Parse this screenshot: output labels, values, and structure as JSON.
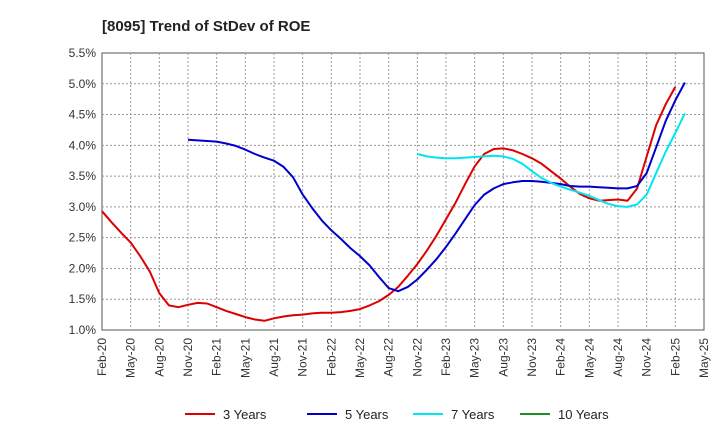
{
  "chart_data": {
    "type": "line",
    "title": "[8095]  Trend of StDev of ROE",
    "xlabel": "",
    "ylabel": "",
    "x_ticks": [
      "Feb-20",
      "May-20",
      "Aug-20",
      "Nov-20",
      "Feb-21",
      "May-21",
      "Aug-21",
      "Nov-21",
      "Feb-22",
      "May-22",
      "Aug-22",
      "Nov-22",
      "Feb-23",
      "May-23",
      "Aug-23",
      "Nov-23",
      "Feb-24",
      "May-24",
      "Aug-24",
      "Nov-24",
      "Feb-25",
      "May-25"
    ],
    "y_ticks": [
      "1.0%",
      "1.5%",
      "2.0%",
      "2.5%",
      "3.0%",
      "3.5%",
      "4.0%",
      "4.5%",
      "5.0%",
      "5.5%"
    ],
    "ylim": [
      1.0,
      5.5
    ],
    "xlim": [
      "2020-02",
      "2025-05"
    ],
    "grid": true,
    "legend_position": "bottom",
    "series": [
      {
        "name": "3 Years",
        "color": "#dd0000",
        "points": [
          [
            "2020-02",
            2.93
          ],
          [
            "2020-03",
            2.75
          ],
          [
            "2020-04",
            2.58
          ],
          [
            "2020-05",
            2.42
          ],
          [
            "2020-06",
            2.2
          ],
          [
            "2020-07",
            1.95
          ],
          [
            "2020-08",
            1.6
          ],
          [
            "2020-09",
            1.4
          ],
          [
            "2020-10",
            1.37
          ],
          [
            "2020-11",
            1.41
          ],
          [
            "2020-12",
            1.44
          ],
          [
            "2021-01",
            1.43
          ],
          [
            "2021-02",
            1.37
          ],
          [
            "2021-03",
            1.31
          ],
          [
            "2021-04",
            1.26
          ],
          [
            "2021-05",
            1.21
          ],
          [
            "2021-06",
            1.17
          ],
          [
            "2021-07",
            1.15
          ],
          [
            "2021-08",
            1.19
          ],
          [
            "2021-09",
            1.22
          ],
          [
            "2021-10",
            1.24
          ],
          [
            "2021-11",
            1.25
          ],
          [
            "2021-12",
            1.27
          ],
          [
            "2022-01",
            1.28
          ],
          [
            "2022-02",
            1.28
          ],
          [
            "2022-03",
            1.29
          ],
          [
            "2022-04",
            1.31
          ],
          [
            "2022-05",
            1.34
          ],
          [
            "2022-06",
            1.4
          ],
          [
            "2022-07",
            1.47
          ],
          [
            "2022-08",
            1.57
          ],
          [
            "2022-09",
            1.7
          ],
          [
            "2022-10",
            1.88
          ],
          [
            "2022-11",
            2.07
          ],
          [
            "2022-12",
            2.29
          ],
          [
            "2023-01",
            2.53
          ],
          [
            "2023-02",
            2.8
          ],
          [
            "2023-03",
            3.07
          ],
          [
            "2023-04",
            3.37
          ],
          [
            "2023-05",
            3.66
          ],
          [
            "2023-06",
            3.86
          ],
          [
            "2023-07",
            3.94
          ],
          [
            "2023-08",
            3.95
          ],
          [
            "2023-09",
            3.92
          ],
          [
            "2023-10",
            3.86
          ],
          [
            "2023-11",
            3.79
          ],
          [
            "2023-12",
            3.7
          ],
          [
            "2024-01",
            3.58
          ],
          [
            "2024-02",
            3.46
          ],
          [
            "2024-03",
            3.33
          ],
          [
            "2024-04",
            3.21
          ],
          [
            "2024-05",
            3.14
          ],
          [
            "2024-06",
            3.1
          ],
          [
            "2024-07",
            3.11
          ],
          [
            "2024-08",
            3.12
          ],
          [
            "2024-09",
            3.1
          ],
          [
            "2024-10",
            3.3
          ],
          [
            "2024-11",
            3.82
          ],
          [
            "2024-12",
            4.33
          ],
          [
            "2025-01",
            4.67
          ],
          [
            "2025-02",
            4.95
          ]
        ]
      },
      {
        "name": "5 Years",
        "color": "#0000cc",
        "points": [
          [
            "2020-11",
            4.09
          ],
          [
            "2020-12",
            4.08
          ],
          [
            "2021-01",
            4.07
          ],
          [
            "2021-02",
            4.06
          ],
          [
            "2021-03",
            4.03
          ],
          [
            "2021-04",
            3.99
          ],
          [
            "2021-05",
            3.93
          ],
          [
            "2021-06",
            3.86
          ],
          [
            "2021-07",
            3.8
          ],
          [
            "2021-08",
            3.75
          ],
          [
            "2021-09",
            3.65
          ],
          [
            "2021-10",
            3.48
          ],
          [
            "2021-11",
            3.2
          ],
          [
            "2021-12",
            2.98
          ],
          [
            "2022-01",
            2.78
          ],
          [
            "2022-02",
            2.62
          ],
          [
            "2022-03",
            2.48
          ],
          [
            "2022-04",
            2.33
          ],
          [
            "2022-05",
            2.2
          ],
          [
            "2022-06",
            2.05
          ],
          [
            "2022-07",
            1.86
          ],
          [
            "2022-08",
            1.68
          ],
          [
            "2022-09",
            1.63
          ],
          [
            "2022-10",
            1.7
          ],
          [
            "2022-11",
            1.82
          ],
          [
            "2022-12",
            1.98
          ],
          [
            "2023-01",
            2.15
          ],
          [
            "2023-02",
            2.35
          ],
          [
            "2023-03",
            2.57
          ],
          [
            "2023-04",
            2.8
          ],
          [
            "2023-05",
            3.03
          ],
          [
            "2023-06",
            3.2
          ],
          [
            "2023-07",
            3.3
          ],
          [
            "2023-08",
            3.37
          ],
          [
            "2023-09",
            3.4
          ],
          [
            "2023-10",
            3.42
          ],
          [
            "2023-11",
            3.42
          ],
          [
            "2023-12",
            3.41
          ],
          [
            "2024-01",
            3.39
          ],
          [
            "2024-02",
            3.37
          ],
          [
            "2024-03",
            3.34
          ],
          [
            "2024-04",
            3.33
          ],
          [
            "2024-05",
            3.33
          ],
          [
            "2024-06",
            3.32
          ],
          [
            "2024-07",
            3.31
          ],
          [
            "2024-08",
            3.3
          ],
          [
            "2024-09",
            3.3
          ],
          [
            "2024-10",
            3.34
          ],
          [
            "2024-11",
            3.55
          ],
          [
            "2024-12",
            3.97
          ],
          [
            "2025-01",
            4.4
          ],
          [
            "2025-02",
            4.73
          ],
          [
            "2025-03",
            5.02
          ]
        ]
      },
      {
        "name": "7 Years",
        "color": "#00e5ee",
        "points": [
          [
            "2022-11",
            3.86
          ],
          [
            "2022-12",
            3.82
          ],
          [
            "2023-01",
            3.8
          ],
          [
            "2023-02",
            3.79
          ],
          [
            "2023-03",
            3.79
          ],
          [
            "2023-04",
            3.8
          ],
          [
            "2023-05",
            3.81
          ],
          [
            "2023-06",
            3.82
          ],
          [
            "2023-07",
            3.83
          ],
          [
            "2023-08",
            3.82
          ],
          [
            "2023-09",
            3.78
          ],
          [
            "2023-10",
            3.7
          ],
          [
            "2023-11",
            3.58
          ],
          [
            "2023-12",
            3.47
          ],
          [
            "2024-01",
            3.39
          ],
          [
            "2024-02",
            3.33
          ],
          [
            "2024-03",
            3.28
          ],
          [
            "2024-04",
            3.23
          ],
          [
            "2024-05",
            3.18
          ],
          [
            "2024-06",
            3.11
          ],
          [
            "2024-07",
            3.05
          ],
          [
            "2024-08",
            3.01
          ],
          [
            "2024-09",
            3.0
          ],
          [
            "2024-10",
            3.04
          ],
          [
            "2024-11",
            3.2
          ],
          [
            "2024-12",
            3.55
          ],
          [
            "2025-01",
            3.9
          ],
          [
            "2025-02",
            4.2
          ],
          [
            "2025-03",
            4.52
          ]
        ]
      },
      {
        "name": "10 Years",
        "color": "#228b22",
        "points": []
      }
    ]
  }
}
